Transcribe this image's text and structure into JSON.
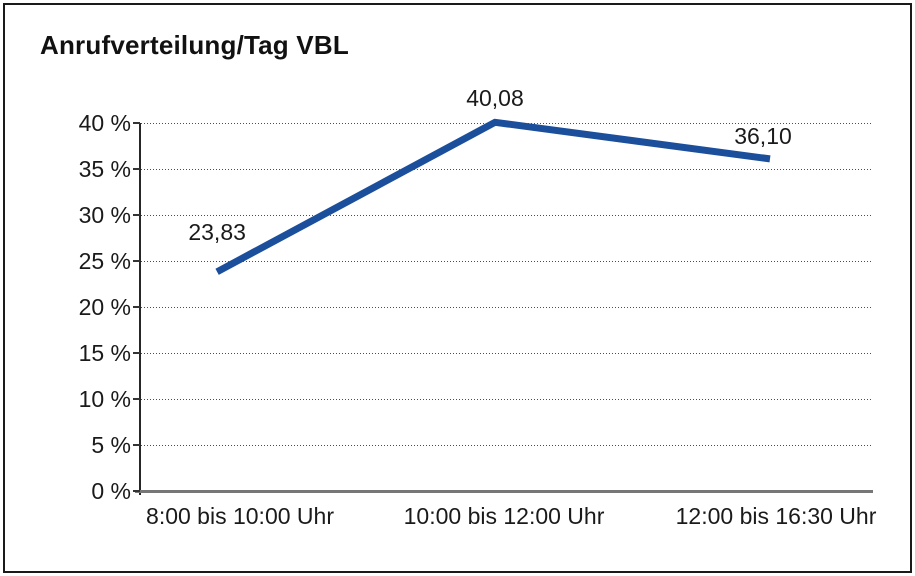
{
  "chart_data": {
    "type": "line",
    "title": "Anrufverteilung/Tag VBL",
    "categories": [
      "8:00 bis 10:00 Uhr",
      "10:00 bis 12:00 Uhr",
      "12:00 bis 16:30 Uhr"
    ],
    "values": [
      23.83,
      40.08,
      36.1
    ],
    "data_labels": [
      "23,83",
      "40,08",
      "36,10"
    ],
    "xlabel": "",
    "ylabel": "",
    "ylim": [
      0,
      40
    ],
    "ytick_step": 5,
    "ytick_labels": [
      "0 %",
      "5 %",
      "10 %",
      "15 %",
      "20 %",
      "25 %",
      "30 %",
      "35 %",
      "40 %"
    ],
    "grid": "horizontal-dotted",
    "legend": "none",
    "colors": {
      "line": "#1b4f9c",
      "y_axis": "#262626",
      "x_axis": "#777777",
      "grid": "#4d4d4d",
      "text": "#1a1a1a",
      "border": "#1a1a1a",
      "background": "#ffffff"
    }
  }
}
